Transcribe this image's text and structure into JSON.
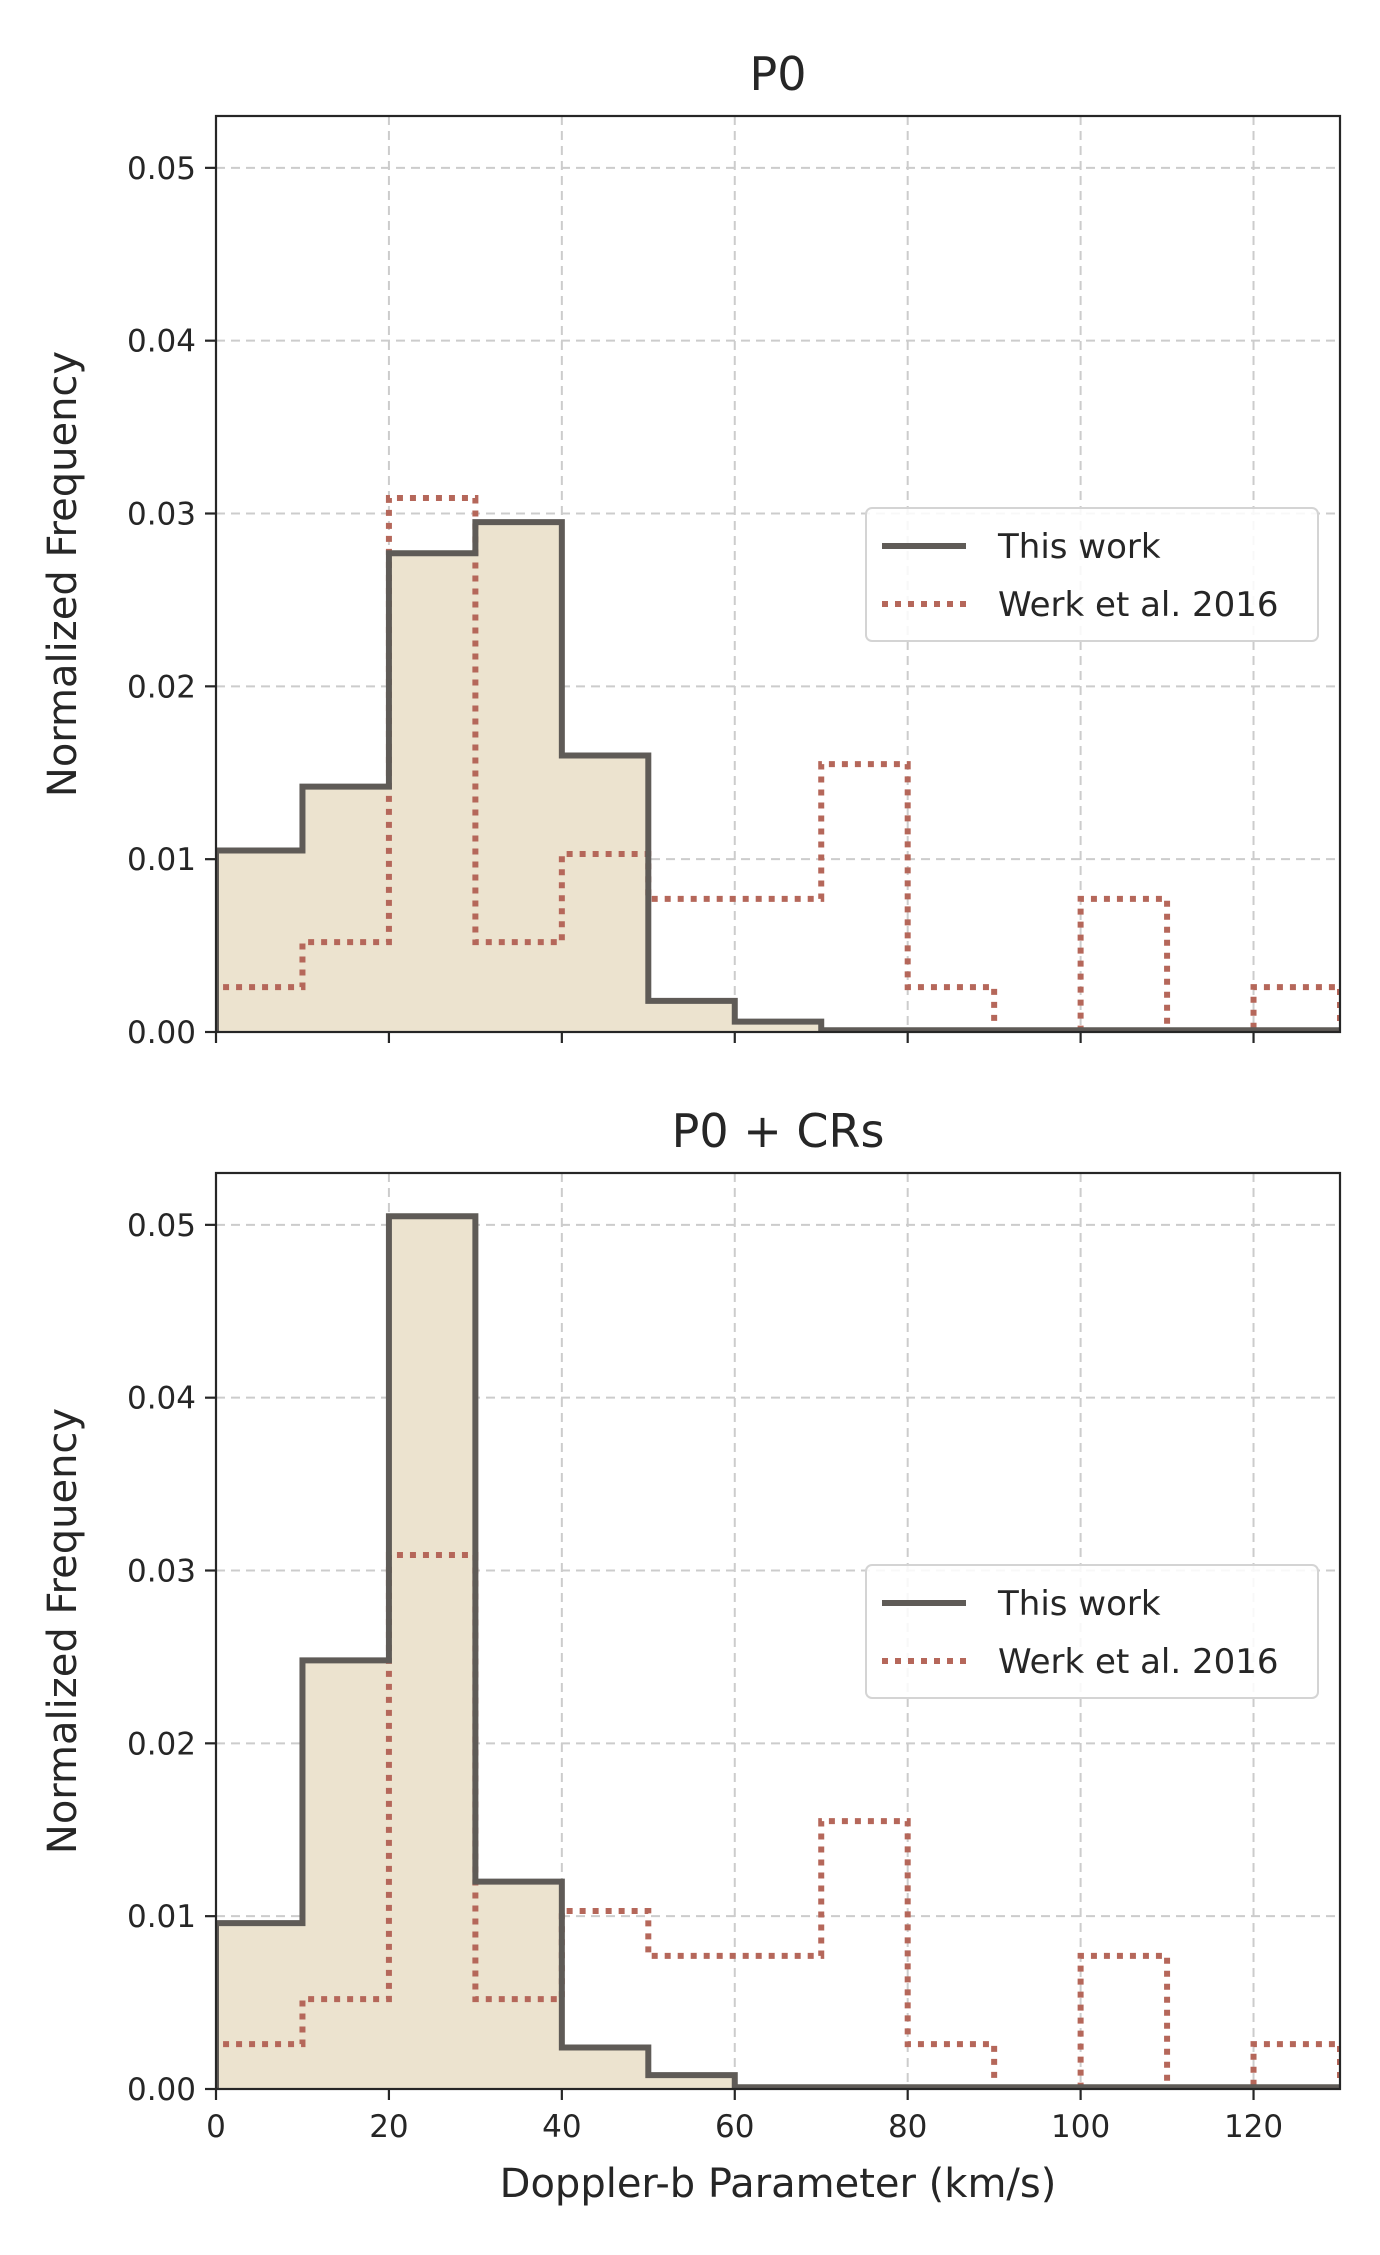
{
  "colors": {
    "this_work_line": "#5f5b57",
    "this_work_fill": "#ece3cf",
    "werk_line": "#b5675a",
    "grid": "#cccccc",
    "axes": "#262626"
  },
  "chart_data": [
    {
      "type": "histogram",
      "title": "P0",
      "xlabel": "",
      "ylabel": "Normalized Frequency",
      "xlim": [
        0,
        130
      ],
      "ylim": [
        0,
        0.053
      ],
      "xticks": [
        0,
        20,
        40,
        60,
        80,
        100,
        120
      ],
      "show_xticklabels": false,
      "yticks": [
        "0.00",
        "0.01",
        "0.02",
        "0.03",
        "0.04",
        "0.05"
      ],
      "grid": true,
      "legend_position": "center-right",
      "bin_edges": [
        0,
        10,
        20,
        30,
        40,
        50,
        60,
        70,
        80,
        90,
        100,
        110,
        120,
        130
      ],
      "series": [
        {
          "name": "This work",
          "style": "solid-filled",
          "values": [
            0.0105,
            0.0142,
            0.0277,
            0.0295,
            0.016,
            0.0018,
            0.0006,
            0.0001,
            0.0001,
            0.0001,
            0.0001,
            0.0001,
            0.0001
          ]
        },
        {
          "name": "Werk et al. 2016",
          "style": "dotted",
          "values": [
            0.0026,
            0.0052,
            0.0309,
            0.0052,
            0.0103,
            0.0077,
            0.0077,
            0.0155,
            0.0026,
            0.0,
            0.0077,
            0.0,
            0.0026
          ]
        }
      ]
    },
    {
      "type": "histogram",
      "title": "P0 + CRs",
      "xlabel": "Doppler-b Parameter (km/s)",
      "ylabel": "Normalized Frequency",
      "xlim": [
        0,
        130
      ],
      "ylim": [
        0,
        0.053
      ],
      "xticks": [
        0,
        20,
        40,
        60,
        80,
        100,
        120
      ],
      "show_xticklabels": true,
      "yticks": [
        "0.00",
        "0.01",
        "0.02",
        "0.03",
        "0.04",
        "0.05"
      ],
      "grid": true,
      "legend_position": "center-right",
      "bin_edges": [
        0,
        10,
        20,
        30,
        40,
        50,
        60,
        70,
        80,
        90,
        100,
        110,
        120,
        130
      ],
      "series": [
        {
          "name": "This work",
          "style": "solid-filled",
          "values": [
            0.0096,
            0.0248,
            0.0505,
            0.012,
            0.0024,
            0.0008,
            0.0001,
            0.0001,
            0.0001,
            0.0001,
            0.0001,
            0.0001,
            0.0001
          ]
        },
        {
          "name": "Werk et al. 2016",
          "style": "dotted",
          "values": [
            0.0026,
            0.0052,
            0.0309,
            0.0052,
            0.0103,
            0.0077,
            0.0077,
            0.0155,
            0.0026,
            0.0,
            0.0077,
            0.0,
            0.0026
          ]
        }
      ]
    }
  ]
}
